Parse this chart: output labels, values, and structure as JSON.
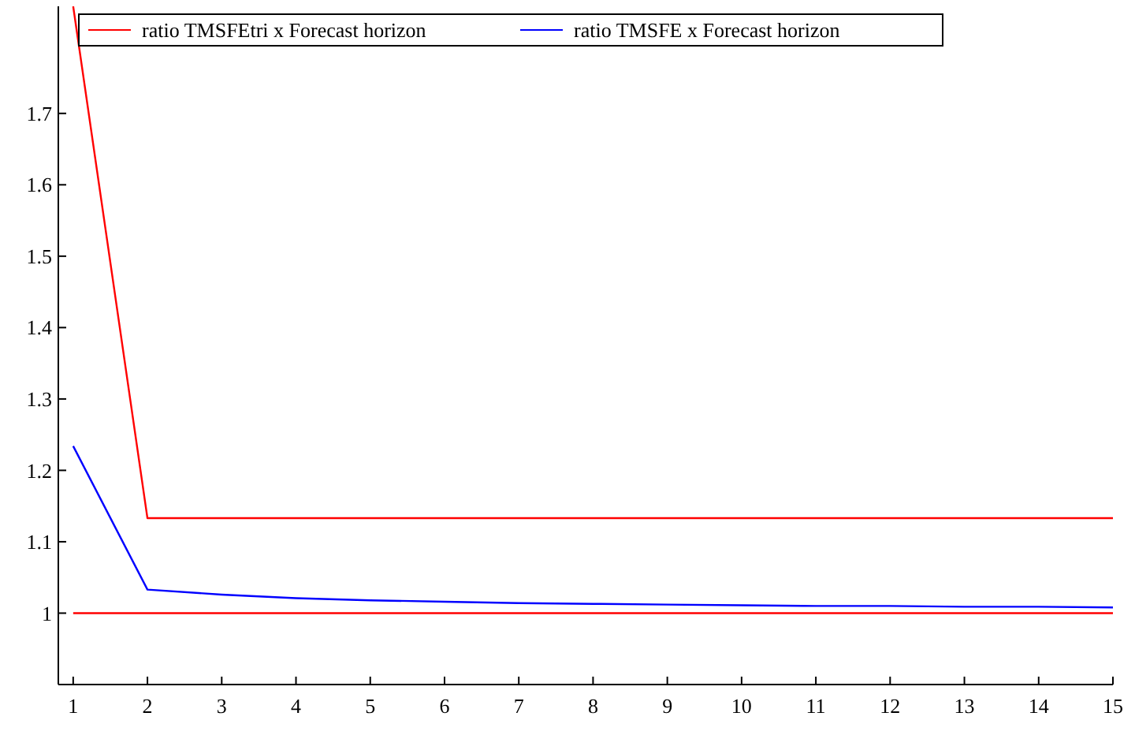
{
  "chart_data": {
    "type": "line",
    "x": [
      1,
      2,
      3,
      4,
      5,
      6,
      7,
      8,
      9,
      10,
      11,
      12,
      13,
      14,
      15
    ],
    "series": [
      {
        "name": "ratio TMSFEtri x Forecast horizon",
        "color": "#ff0000",
        "values": [
          1.85,
          1.133,
          1.133,
          1.133,
          1.133,
          1.133,
          1.133,
          1.133,
          1.133,
          1.133,
          1.133,
          1.133,
          1.133,
          1.133,
          1.133
        ]
      },
      {
        "name": "ratio TMSFE x Forecast horizon",
        "color": "#0000ff",
        "values": [
          1.234,
          1.033,
          1.026,
          1.021,
          1.018,
          1.016,
          1.014,
          1.013,
          1.012,
          1.011,
          1.01,
          1.01,
          1.009,
          1.009,
          1.008
        ]
      }
    ],
    "xlim": [
      0.8,
      15
    ],
    "xticks": [
      1,
      2,
      3,
      4,
      5,
      6,
      7,
      8,
      9,
      10,
      11,
      12,
      13,
      14,
      15
    ],
    "ylim": [
      0.9,
      1.85
    ],
    "yticks": [
      1,
      1.1,
      1.2,
      1.3,
      1.4,
      1.5,
      1.6,
      1.7
    ],
    "ref_lines": [
      {
        "axis": "y",
        "value": 1,
        "color": "#ff0000"
      }
    ],
    "legend": "top",
    "grid": false,
    "marker": "none",
    "line_style": "solid"
  }
}
